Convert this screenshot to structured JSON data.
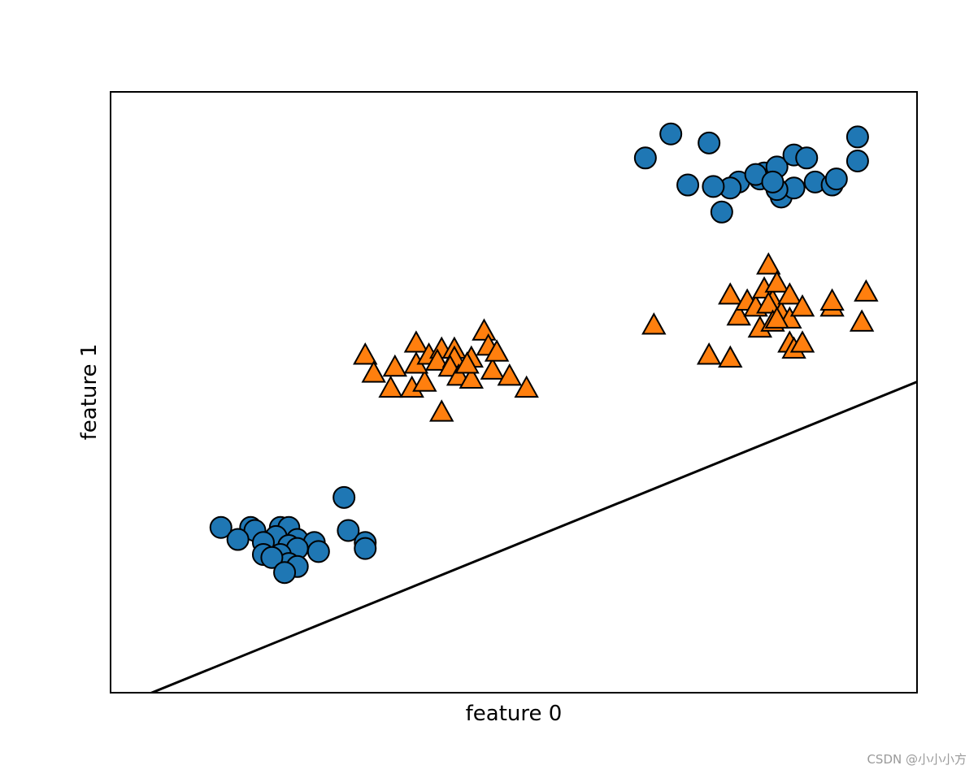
{
  "chart_data": {
    "type": "scatter",
    "title": "",
    "xlabel": "feature 0",
    "ylabel": "feature 1",
    "xticks": "none",
    "yticks": "none",
    "grid": false,
    "xlim": [
      6.5,
      16.0
    ],
    "ylim": [
      -2.0,
      18.0
    ],
    "decision_line": {
      "slope": 1.148,
      "intercept": -10.02,
      "color": "#000000"
    },
    "series": [
      {
        "class": 0,
        "marker": "circle",
        "color": "#1f77b4",
        "points": [
          [
            7.8,
            3.5
          ],
          [
            8.15,
            3.5
          ],
          [
            8.2,
            3.4
          ],
          [
            8.5,
            3.5
          ],
          [
            8.6,
            3.5
          ],
          [
            8.45,
            3.2
          ],
          [
            8.0,
            3.1
          ],
          [
            8.3,
            3.0
          ],
          [
            8.7,
            3.1
          ],
          [
            8.9,
            3.0
          ],
          [
            8.6,
            2.9
          ],
          [
            8.7,
            2.8
          ],
          [
            8.3,
            2.6
          ],
          [
            8.5,
            2.6
          ],
          [
            8.95,
            2.7
          ],
          [
            8.6,
            2.3
          ],
          [
            8.7,
            2.2
          ],
          [
            8.4,
            2.5
          ],
          [
            8.55,
            2.0
          ],
          [
            9.25,
            4.5
          ],
          [
            9.3,
            3.4
          ],
          [
            9.5,
            3.0
          ],
          [
            9.5,
            2.8
          ],
          [
            12.8,
            15.8
          ],
          [
            13.1,
            16.6
          ],
          [
            13.55,
            16.3
          ],
          [
            13.9,
            15.0
          ],
          [
            14.15,
            15.1
          ],
          [
            14.2,
            15.3
          ],
          [
            14.35,
            15.5
          ],
          [
            14.55,
            15.9
          ],
          [
            14.7,
            15.8
          ],
          [
            14.4,
            14.5
          ],
          [
            14.55,
            14.8
          ],
          [
            14.8,
            15.0
          ],
          [
            14.35,
            14.75
          ],
          [
            13.8,
            14.8
          ],
          [
            13.6,
            14.85
          ],
          [
            13.3,
            14.9
          ],
          [
            14.1,
            15.25
          ],
          [
            14.3,
            15.0
          ],
          [
            13.7,
            14.0
          ],
          [
            15.0,
            14.9
          ],
          [
            15.05,
            15.1
          ],
          [
            15.3,
            16.5
          ],
          [
            15.3,
            15.7
          ]
        ]
      },
      {
        "class": 1,
        "marker": "triangle",
        "color": "#ff7f0e",
        "points": [
          [
            9.5,
            9.2
          ],
          [
            9.6,
            8.6
          ],
          [
            9.85,
            8.8
          ],
          [
            9.8,
            8.1
          ],
          [
            10.05,
            8.1
          ],
          [
            10.2,
            8.3
          ],
          [
            10.1,
            9.6
          ],
          [
            10.1,
            8.9
          ],
          [
            10.25,
            9.2
          ],
          [
            10.4,
            9.4
          ],
          [
            10.35,
            9.0
          ],
          [
            10.55,
            9.4
          ],
          [
            10.55,
            9.1
          ],
          [
            10.5,
            8.8
          ],
          [
            10.6,
            8.5
          ],
          [
            10.75,
            8.4
          ],
          [
            10.75,
            9.1
          ],
          [
            10.9,
            10.0
          ],
          [
            10.95,
            9.5
          ],
          [
            11.0,
            8.7
          ],
          [
            11.2,
            8.5
          ],
          [
            11.05,
            9.3
          ],
          [
            11.4,
            8.1
          ],
          [
            10.4,
            7.3
          ],
          [
            10.7,
            8.9
          ],
          [
            12.9,
            10.2
          ],
          [
            13.55,
            9.2
          ],
          [
            13.8,
            11.2
          ],
          [
            13.9,
            10.5
          ],
          [
            14.0,
            11.0
          ],
          [
            14.1,
            10.8
          ],
          [
            14.2,
            11.4
          ],
          [
            14.25,
            12.2
          ],
          [
            14.3,
            11.0
          ],
          [
            14.35,
            11.6
          ],
          [
            14.25,
            10.9
          ],
          [
            14.4,
            10.6
          ],
          [
            14.5,
            9.6
          ],
          [
            14.55,
            9.4
          ],
          [
            14.65,
            9.6
          ],
          [
            14.5,
            11.2
          ],
          [
            14.5,
            10.4
          ],
          [
            14.15,
            10.1
          ],
          [
            14.3,
            10.3
          ],
          [
            14.35,
            10.4
          ],
          [
            14.65,
            10.8
          ],
          [
            15.0,
            10.8
          ],
          [
            15.0,
            11.0
          ],
          [
            15.35,
            10.3
          ],
          [
            15.4,
            11.3
          ],
          [
            13.8,
            9.1
          ]
        ]
      }
    ]
  },
  "watermark": "CSDN @小小小方"
}
